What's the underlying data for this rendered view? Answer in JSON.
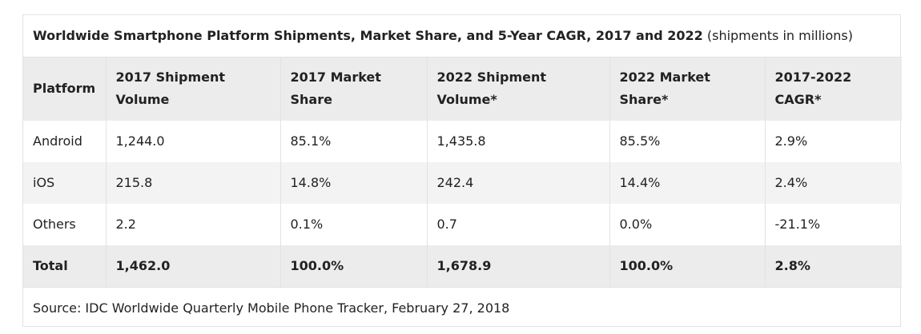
{
  "caption": {
    "title": "Worldwide Smartphone Platform Shipments, Market Share, and 5-Year CAGR, 2017 and 2022",
    "subtitle": "(shipments in millions)"
  },
  "columns": [
    "Platform",
    "2017 Shipment Volume",
    "2017 Market Share",
    "2022 Shipment Volume*",
    "2022 Market Share*",
    "2017-2022 CAGR*"
  ],
  "rows": [
    [
      "Android",
      "1,244.0",
      "85.1%",
      "1,435.8",
      "85.5%",
      "2.9%"
    ],
    [
      "iOS",
      "215.8",
      "14.8%",
      "242.4",
      "14.4%",
      "2.4%"
    ],
    [
      "Others",
      "2.2",
      "0.1%",
      "0.7",
      "0.0%",
      "-21.1%"
    ]
  ],
  "total": [
    "Total",
    "1,462.0",
    "100.0%",
    "1,678.9",
    "100.0%",
    "2.8%"
  ],
  "source": "Source: IDC Worldwide Quarterly Mobile Phone Tracker, February 27, 2018"
}
